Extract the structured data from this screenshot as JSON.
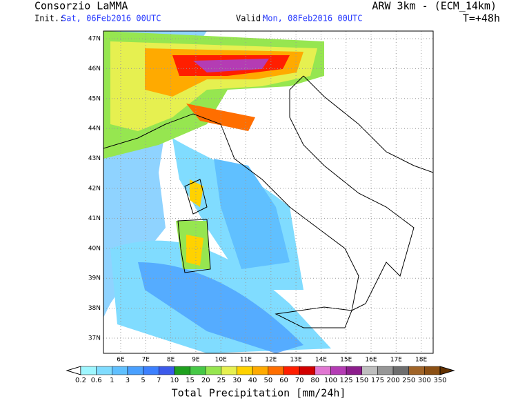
{
  "header": {
    "org": "Consorzio LaMMA",
    "model": "ARW 3km - (ECM_14km)",
    "init_label": "Init.:",
    "init_value": "Sat, 06Feb2016 00UTC",
    "valid_label": "Valid:",
    "valid_value": "Mon, 08Feb2016 00UTC",
    "lead": "T=+48h"
  },
  "map": {
    "lat_labels": [
      "47N",
      "46N",
      "45N",
      "44N",
      "43N",
      "42N",
      "41N",
      "40N",
      "39N",
      "38N",
      "37N"
    ],
    "lon_labels": [
      "6E",
      "7E",
      "8E",
      "9E",
      "10E",
      "11E",
      "12E",
      "13E",
      "14E",
      "15E",
      "16E",
      "17E",
      "18E"
    ]
  },
  "colorbar": {
    "labels": [
      "0.2",
      "0.6",
      "1",
      "3",
      "5",
      "7",
      "10",
      "15",
      "20",
      "25",
      "30",
      "40",
      "50",
      "60",
      "70",
      "80",
      "100",
      "125",
      "150",
      "175",
      "200",
      "250",
      "300",
      "350"
    ],
    "colors": [
      "#ffffff",
      "#9ef6ff",
      "#80dcff",
      "#60c0ff",
      "#4aa0ff",
      "#3c80ff",
      "#3c5aeb",
      "#1ea01e",
      "#46c846",
      "#96e650",
      "#e6f050",
      "#ffd200",
      "#ffaa00",
      "#ff6e00",
      "#ff1e00",
      "#d20000",
      "#e178d2",
      "#b43cb4",
      "#8c1e8c",
      "#bebebe",
      "#969696",
      "#6e6e6e",
      "#a06428",
      "#8c5014",
      "#643200"
    ],
    "caption": "Total Precipitation [mm/24h]"
  }
}
